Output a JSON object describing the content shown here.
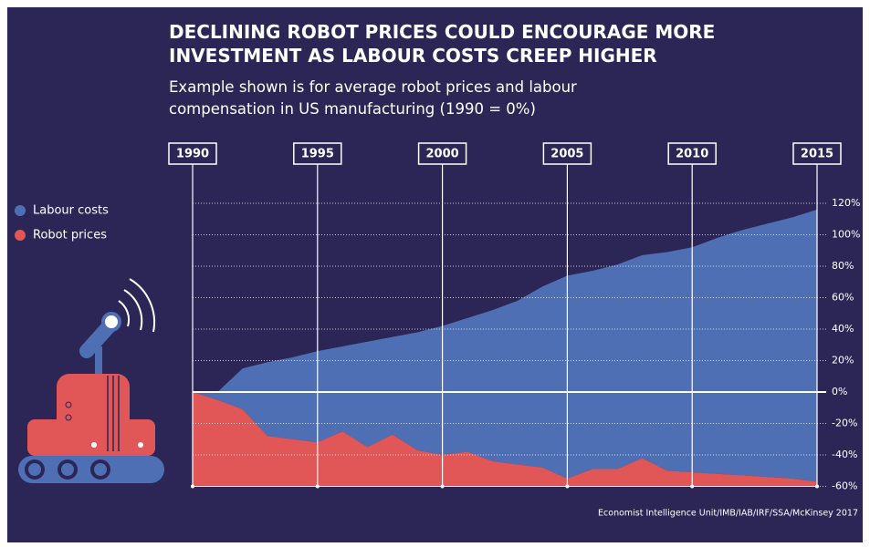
{
  "chart_data": {
    "type": "area",
    "title": "DECLINING ROBOT PRICES COULD ENCOURAGE MORE INVESTMENT AS LABOUR COSTS CREEP HIGHER",
    "subtitle": "Example shown is for average robot prices and labour compensation in US manufacturing (1990 = 0%)",
    "source": "Economist Intelligence Unit/IMB/IAB/IRF/SSA/McKinsey 2017",
    "x": [
      1990,
      1991,
      1992,
      1993,
      1994,
      1995,
      1996,
      1997,
      1998,
      1999,
      2000,
      2001,
      2002,
      2003,
      2004,
      2005,
      2006,
      2007,
      2008,
      2009,
      2010,
      2011,
      2012,
      2013,
      2014,
      2015
    ],
    "series": [
      {
        "name": "Labour costs",
        "color": "#4f6fb5",
        "values": [
          0,
          0,
          15,
          19,
          22,
          26,
          29,
          32,
          35,
          38,
          42,
          47,
          52,
          58,
          67,
          74,
          77,
          81,
          87,
          89,
          92,
          98,
          103,
          107,
          111,
          116
        ]
      },
      {
        "name": "Robot prices",
        "color": "#e15656",
        "values": [
          0,
          -5,
          -11,
          -28,
          -30,
          -32,
          -25,
          -35,
          -27,
          -37,
          -40,
          -38,
          -44,
          -46,
          -48,
          -55,
          -49,
          -49,
          -42,
          -50,
          -51,
          -52,
          -53,
          -54,
          -55,
          -57
        ]
      }
    ],
    "xlim": [
      1990,
      2015
    ],
    "xticks": [
      1990,
      1995,
      2000,
      2005,
      2010,
      2015
    ],
    "ylim": [
      -60,
      120
    ],
    "yticks": [
      {
        "value": -60,
        "label": "-60%"
      },
      {
        "value": -40,
        "label": "-40%"
      },
      {
        "value": -20,
        "label": "-20%"
      },
      {
        "value": 0,
        "label": "0%"
      },
      {
        "value": 20,
        "label": "20%"
      },
      {
        "value": 40,
        "label": "40%"
      },
      {
        "value": 60,
        "label": "60%"
      },
      {
        "value": 80,
        "label": "80%"
      },
      {
        "value": 100,
        "label": "100%"
      },
      {
        "value": 120,
        "label": "120%"
      }
    ],
    "grid": true,
    "legend": "left"
  }
}
